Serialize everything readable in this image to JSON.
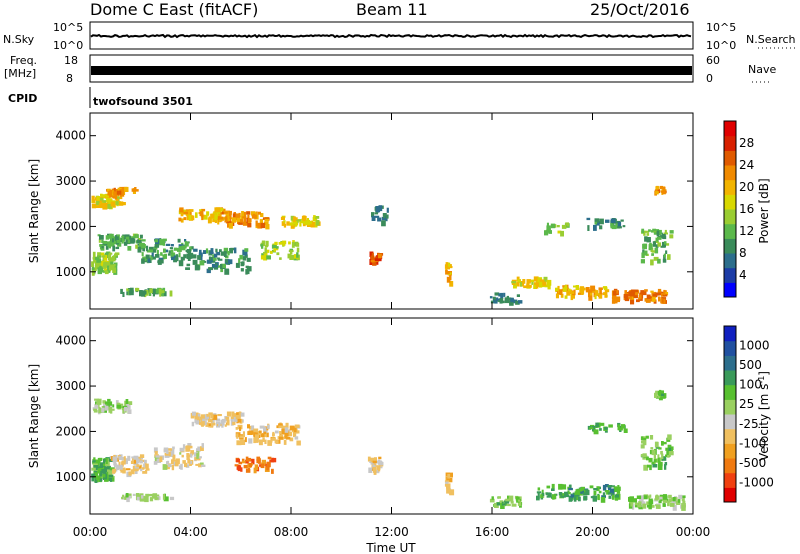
{
  "header": {
    "station": "Dome C East (fitACF)",
    "beam": "Beam 11",
    "date": "25/Oct/2016"
  },
  "strips": {
    "nsky_label": "N.Sky",
    "nsearch_label": "N.Search",
    "nsky_ticks": [
      "10^5",
      "10^0"
    ],
    "nsearch_ticks": [
      "10^5",
      "10^0"
    ],
    "freq_label_1": "Freq.",
    "freq_label_2": "[MHz]",
    "freq_ticks": [
      "18",
      "8"
    ],
    "nave_label": "Nave",
    "nave_ticks": [
      "60",
      "0"
    ],
    "cpid_label": "CPID",
    "cpid_value": "twofsound 3501"
  },
  "panels": {
    "y_label": "Slant Range [km]",
    "y_ticks": [
      "4000",
      "3000",
      "2000",
      "1000"
    ],
    "x_label": "Time UT",
    "x_ticks": [
      "00:00",
      "04:00",
      "08:00",
      "12:00",
      "16:00",
      "20:00",
      "00:00"
    ],
    "power_colorbar_label": "Power [dB]",
    "power_ticks": [
      "28",
      "24",
      "20",
      "16",
      "12",
      "8",
      "4"
    ],
    "velocity_colorbar_label": "Velocity [m s",
    "velocity_unit_sup": "-1",
    "velocity_unit_close": "]",
    "velocity_ticks": [
      "1000",
      "500",
      "100",
      "25",
      "-25",
      "-100",
      "-500",
      "-1000"
    ]
  },
  "colors": {
    "power_scale": [
      "#0000ff",
      "#1c3ca6",
      "#2c6e8c",
      "#3a8b5a",
      "#5bb84b",
      "#9acd32",
      "#d8d800",
      "#f2b400",
      "#f08a00",
      "#e05a00",
      "#d82000",
      "#e00000"
    ],
    "velocity_scale": [
      "#e00000",
      "#f04010",
      "#f07a10",
      "#f0a020",
      "#f0c060",
      "#c8c8c8",
      "#9ad060",
      "#58c030",
      "#3a9a5a",
      "#2c6e8c",
      "#2050a0",
      "#1020c0"
    ]
  },
  "chart_data": [
    {
      "type": "heatmap",
      "title": "Power",
      "xlabel": "Time UT",
      "ylabel": "Slant Range [km]",
      "xlim": [
        0,
        24
      ],
      "ylim": [
        180,
        4500
      ],
      "colorbar": "Power [dB]",
      "clim": [
        0,
        32
      ],
      "clusters": [
        {
          "t": 0.6,
          "r": 2600,
          "dt": 1.4,
          "dr": 250,
          "v": 18,
          "n": 60
        },
        {
          "t": 1.2,
          "r": 2800,
          "dt": 1.2,
          "dr": 150,
          "v": 22,
          "n": 30
        },
        {
          "t": 0.5,
          "r": 1250,
          "dt": 1.0,
          "dr": 450,
          "v": 14,
          "n": 90
        },
        {
          "t": 1.2,
          "r": 1700,
          "dt": 1.8,
          "dr": 300,
          "v": 11,
          "n": 70
        },
        {
          "t": 2.2,
          "r": 600,
          "dt": 2.0,
          "dr": 100,
          "v": 12,
          "n": 40
        },
        {
          "t": 3.0,
          "r": 1500,
          "dt": 2.0,
          "dr": 500,
          "v": 10,
          "n": 80
        },
        {
          "t": 4.5,
          "r": 2300,
          "dt": 2.0,
          "dr": 250,
          "v": 20,
          "n": 70
        },
        {
          "t": 6.0,
          "r": 2200,
          "dt": 2.0,
          "dr": 300,
          "v": 22,
          "n": 70
        },
        {
          "t": 5.0,
          "r": 1300,
          "dt": 2.5,
          "dr": 500,
          "v": 9,
          "n": 80
        },
        {
          "t": 7.5,
          "r": 1500,
          "dt": 1.5,
          "dr": 400,
          "v": 15,
          "n": 50
        },
        {
          "t": 8.3,
          "r": 2150,
          "dt": 1.5,
          "dr": 200,
          "v": 18,
          "n": 40
        },
        {
          "t": 11.3,
          "r": 1350,
          "dt": 0.4,
          "dr": 200,
          "v": 26,
          "n": 25
        },
        {
          "t": 11.5,
          "r": 2300,
          "dt": 0.7,
          "dr": 350,
          "v": 8,
          "n": 20
        },
        {
          "t": 14.2,
          "r": 1000,
          "dt": 0.2,
          "dr": 450,
          "v": 20,
          "n": 15
        },
        {
          "t": 16.5,
          "r": 450,
          "dt": 1.2,
          "dr": 200,
          "v": 8,
          "n": 30
        },
        {
          "t": 17.5,
          "r": 800,
          "dt": 1.5,
          "dr": 200,
          "v": 18,
          "n": 40
        },
        {
          "t": 19.5,
          "r": 600,
          "dt": 2.0,
          "dr": 250,
          "v": 20,
          "n": 60
        },
        {
          "t": 21.8,
          "r": 500,
          "dt": 2.2,
          "dr": 250,
          "v": 24,
          "n": 80
        },
        {
          "t": 22.5,
          "r": 1600,
          "dt": 1.2,
          "dr": 700,
          "v": 12,
          "n": 60
        },
        {
          "t": 22.6,
          "r": 2850,
          "dt": 0.4,
          "dr": 150,
          "v": 22,
          "n": 15
        },
        {
          "t": 20.5,
          "r": 2100,
          "dt": 1.5,
          "dr": 200,
          "v": 10,
          "n": 25
        },
        {
          "t": 18.5,
          "r": 2000,
          "dt": 1.0,
          "dr": 200,
          "v": 14,
          "n": 15
        }
      ]
    },
    {
      "type": "heatmap",
      "title": "Velocity",
      "xlabel": "Time UT",
      "ylabel": "Slant Range [km]",
      "xlim": [
        0,
        24
      ],
      "ylim": [
        180,
        4500
      ],
      "colorbar": "Velocity [m s^-1]",
      "clim": [
        -1000,
        1000
      ],
      "clusters": [
        {
          "t": 0.8,
          "r": 2600,
          "dt": 1.4,
          "dr": 250,
          "v": 80,
          "n": 60
        },
        {
          "t": 0.4,
          "r": 1200,
          "dt": 0.8,
          "dr": 500,
          "v": 300,
          "n": 90
        },
        {
          "t": 1.5,
          "r": 1300,
          "dt": 1.5,
          "dr": 400,
          "v": -200,
          "n": 70
        },
        {
          "t": 2.2,
          "r": 600,
          "dt": 2.0,
          "dr": 100,
          "v": 50,
          "n": 40
        },
        {
          "t": 3.5,
          "r": 1500,
          "dt": 2.0,
          "dr": 500,
          "v": -150,
          "n": 80
        },
        {
          "t": 5.0,
          "r": 2300,
          "dt": 2.0,
          "dr": 300,
          "v": -200,
          "n": 80
        },
        {
          "t": 7.0,
          "r": 2000,
          "dt": 2.5,
          "dr": 400,
          "v": -300,
          "n": 90
        },
        {
          "t": 6.5,
          "r": 1300,
          "dt": 1.5,
          "dr": 300,
          "v": -600,
          "n": 40
        },
        {
          "t": 11.3,
          "r": 1300,
          "dt": 0.5,
          "dr": 300,
          "v": -200,
          "n": 30
        },
        {
          "t": 14.2,
          "r": 900,
          "dt": 0.2,
          "dr": 400,
          "v": -300,
          "n": 15
        },
        {
          "t": 16.5,
          "r": 500,
          "dt": 1.2,
          "dr": 200,
          "v": 200,
          "n": 35
        },
        {
          "t": 18.5,
          "r": 700,
          "dt": 1.5,
          "dr": 300,
          "v": 300,
          "n": 40
        },
        {
          "t": 20.0,
          "r": 700,
          "dt": 2.0,
          "dr": 300,
          "v": 400,
          "n": 60
        },
        {
          "t": 22.5,
          "r": 500,
          "dt": 2.2,
          "dr": 250,
          "v": 120,
          "n": 80
        },
        {
          "t": 22.5,
          "r": 1600,
          "dt": 1.2,
          "dr": 700,
          "v": 200,
          "n": 60
        },
        {
          "t": 22.6,
          "r": 2850,
          "dt": 0.4,
          "dr": 150,
          "v": 200,
          "n": 15
        },
        {
          "t": 20.5,
          "r": 2100,
          "dt": 1.5,
          "dr": 200,
          "v": 300,
          "n": 25
        }
      ]
    }
  ]
}
